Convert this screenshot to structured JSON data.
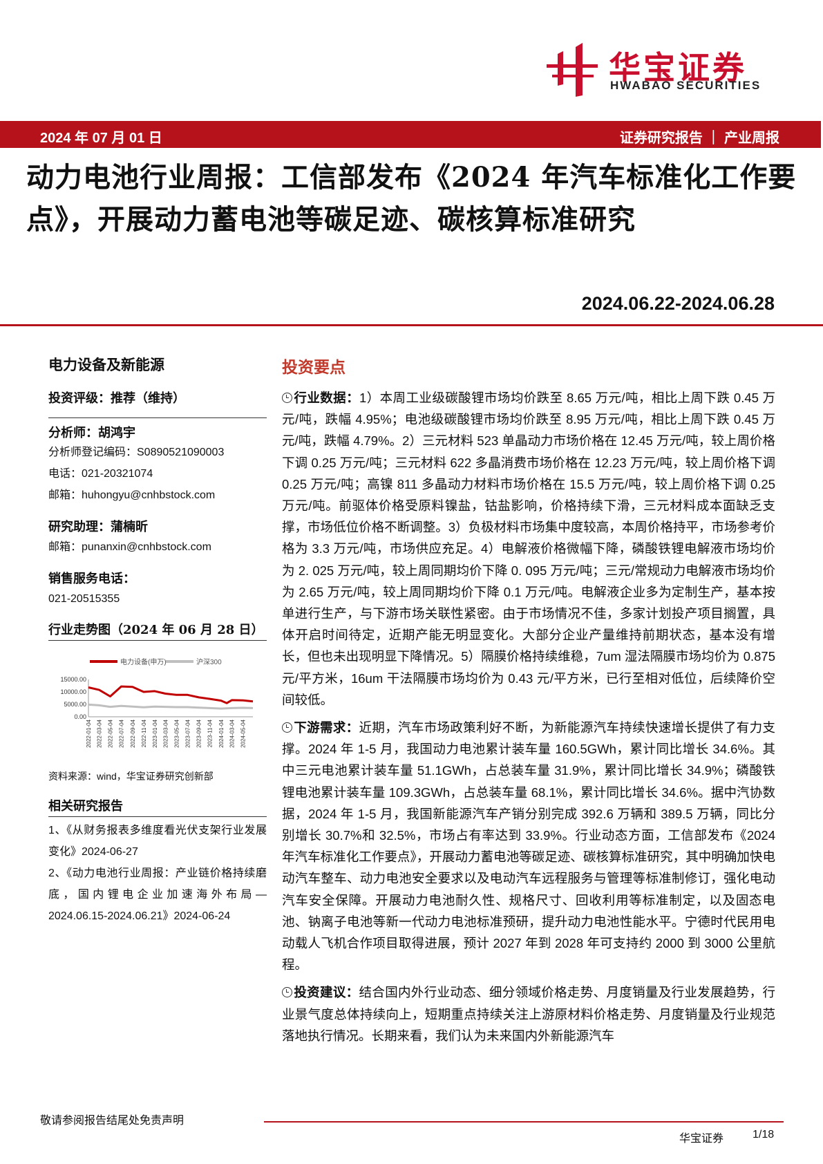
{
  "brand": {
    "name_cn": "华宝证券",
    "name_en": "HWABAO SECURITIES",
    "color": "#c8102e"
  },
  "header": {
    "date": "2024 年 07 月 01 日",
    "report_type": "证券研究报告 ｜ 产业周报"
  },
  "title": "动力电池行业周报：工信部发布《2024 年汽车标准化工作要点》，开展动力蓄电池等碳足迹、碳核算标准研究",
  "date_range": "2024.06.22-2024.06.28",
  "sidebar": {
    "industry": "电力设备及新能源",
    "rating": "投资评级：推荐（维持）",
    "analyst": "分析师：胡鸿宇",
    "analyst_reg": "分析师登记编码：S0890521090003",
    "analyst_phone": "电话：021-20321074",
    "analyst_email": "邮箱：huhongyu@cnhbstock.com",
    "assistant": "研究助理：蒲楠昕",
    "assistant_email": "邮箱：punanxin@cnhbstock.com",
    "sales_label": "销售服务电话：",
    "sales_phone": "021-20515355",
    "chart_title": "行业走势图（2024 年 06 月 28 日）",
    "chart_source": "资料来源：wind，华宝证券研究创新部",
    "related_title": "相关研究报告",
    "related": [
      "1、《从财务报表多维度看光伏支架行业发展变化》2024-06-27",
      "2、《动力电池行业周报：产业链价格持续磨底，国内锂电企业加速海外布局—2024.06.15-2024.06.21》2024-06-24"
    ]
  },
  "chart_data": {
    "type": "line",
    "title": "",
    "legend_position": "top",
    "ylim": [
      0,
      15000
    ],
    "y_ticks": [
      "15000.00",
      "10000.00",
      "5000.00",
      "0.00"
    ],
    "x_ticks": [
      "2022-01-04",
      "2022-03-04",
      "2022-05-04",
      "2022-07-04",
      "2022-09-04",
      "2022-11-04",
      "2023-01-04",
      "2023-03-04",
      "2023-05-04",
      "2023-07-04",
      "2023-09-04",
      "2023-11-04",
      "2024-01-04",
      "2024-03-04",
      "2024-05-04"
    ],
    "x": [
      "2022-01-04",
      "2022-03-04",
      "2022-05-04",
      "2022-07-04",
      "2022-09-04",
      "2022-11-04",
      "2023-01-04",
      "2023-03-04",
      "2023-05-04",
      "2023-07-04",
      "2023-09-04",
      "2023-11-04",
      "2024-01-04",
      "2024-02-05",
      "2024-03-04",
      "2024-05-04",
      "2024-06-28"
    ],
    "series": [
      {
        "name": "电力设备(申万)",
        "color": "#c00000",
        "values": [
          11800,
          10800,
          8200,
          12200,
          12000,
          10000,
          10300,
          9300,
          8800,
          8800,
          7800,
          7200,
          6500,
          5500,
          6700,
          6600,
          6200
        ]
      },
      {
        "name": "沪深300",
        "color": "#bfbfbf",
        "values": [
          4900,
          4600,
          4000,
          4400,
          4100,
          3800,
          4100,
          4000,
          3900,
          3900,
          3700,
          3500,
          3300,
          3400,
          3500,
          3600,
          3500
        ]
      }
    ]
  },
  "main": {
    "heading": "投资要点",
    "paragraphs": [
      {
        "lead": "行业数据：",
        "text": "1）本周工业级碳酸锂市场均价跌至 8.65 万元/吨，相比上周下跌 0.45 万元/吨，跌幅 4.95%；电池级碳酸锂市场均价跌至 8.95 万元/吨，相比上周下跌 0.45 万元/吨，跌幅 4.79%。2）三元材料 523 单晶动力市场价格在 12.45 万元/吨，较上周价格下调 0.25 万元/吨；三元材料 622 多晶消费市场价格在 12.23 万元/吨，较上周价格下调 0.25 万元/吨；高镍 811 多晶动力材料市场价格在 15.5 万元/吨，较上周价格下调 0.25 万元/吨。前驱体价格受原料镍盐，钴盐影响，价格持续下滑，三元材料成本面缺乏支撑，市场低位价格不断调整。3）负极材料市场集中度较高，本周价格持平，市场参考价格为 3.3 万元/吨，市场供应充足。4）电解液价格微幅下降，磷酸铁锂电解液市场均价为 2. 025 万元/吨，较上周同期均价下降 0. 095 万元/吨；三元/常规动力电解液市场均价为 2.65 万元/吨，较上周同期均价下降 0.1 万元/吨。电解液企业多为定制生产，基本按单进行生产，与下游市场关联性紧密。由于市场情况不佳，多家计划投产项目搁置，具体开启时间待定，近期产能无明显变化。大部分企业产量维持前期状态，基本没有增长，但也未出现明显下降情况。5）隔膜价格持续维稳，7um 湿法隔膜市场均价为 0.875 元/平方米，16um 干法隔膜市场均价为 0.43 元/平方米，已行至相对低位，后续降价空间较低。"
      },
      {
        "lead": "下游需求：",
        "text": "近期，汽车市场政策利好不断，为新能源汽车持续快速增长提供了有力支撑。2024 年 1-5 月，我国动力电池累计装车量 160.5GWh，累计同比增长 34.6%。其中三元电池累计装车量 51.1GWh，占总装车量 31.9%，累计同比增长 34.9%；磷酸铁锂电池累计装车量 109.3GWh，占总装车量 68.1%，累计同比增长 34.6%。据中汽协数据，2024 年 1-5 月，我国新能源汽车产销分别完成 392.6 万辆和 389.5 万辆，同比分别增长 30.7%和 32.5%，市场占有率达到 33.9%。行业动态方面，工信部发布《2024 年汽车标准化工作要点》，开展动力蓄电池等碳足迹、碳核算标准研究，其中明确加快电动汽车整车、动力电池安全要求以及电动汽车远程服务与管理等标准制修订，强化电动汽车安全保障。开展动力电池耐久性、规格尺寸、回收利用等标准制定，以及固态电池、钠离子电池等新一代动力电池标准预研，提升动力电池性能水平。宁德时代民用电动载人飞机合作项目取得进展，预计 2027 年到 2028 年可支持约 2000 到 3000 公里航程。"
      },
      {
        "lead": "投资建议：",
        "text": "结合国内外行业动态、细分领域价格走势、月度销量及行业发展趋势，行业景气度总体持续向上，短期重点持续关注上游原材料价格走势、月度销量及行业规范落地执行情况。长期来看，我们认为未来国内外新能源汽车"
      }
    ]
  },
  "footer": {
    "disclaimer": "敬请参阅报告结尾处免责声明",
    "company": "华宝证券",
    "page": "1/18"
  }
}
